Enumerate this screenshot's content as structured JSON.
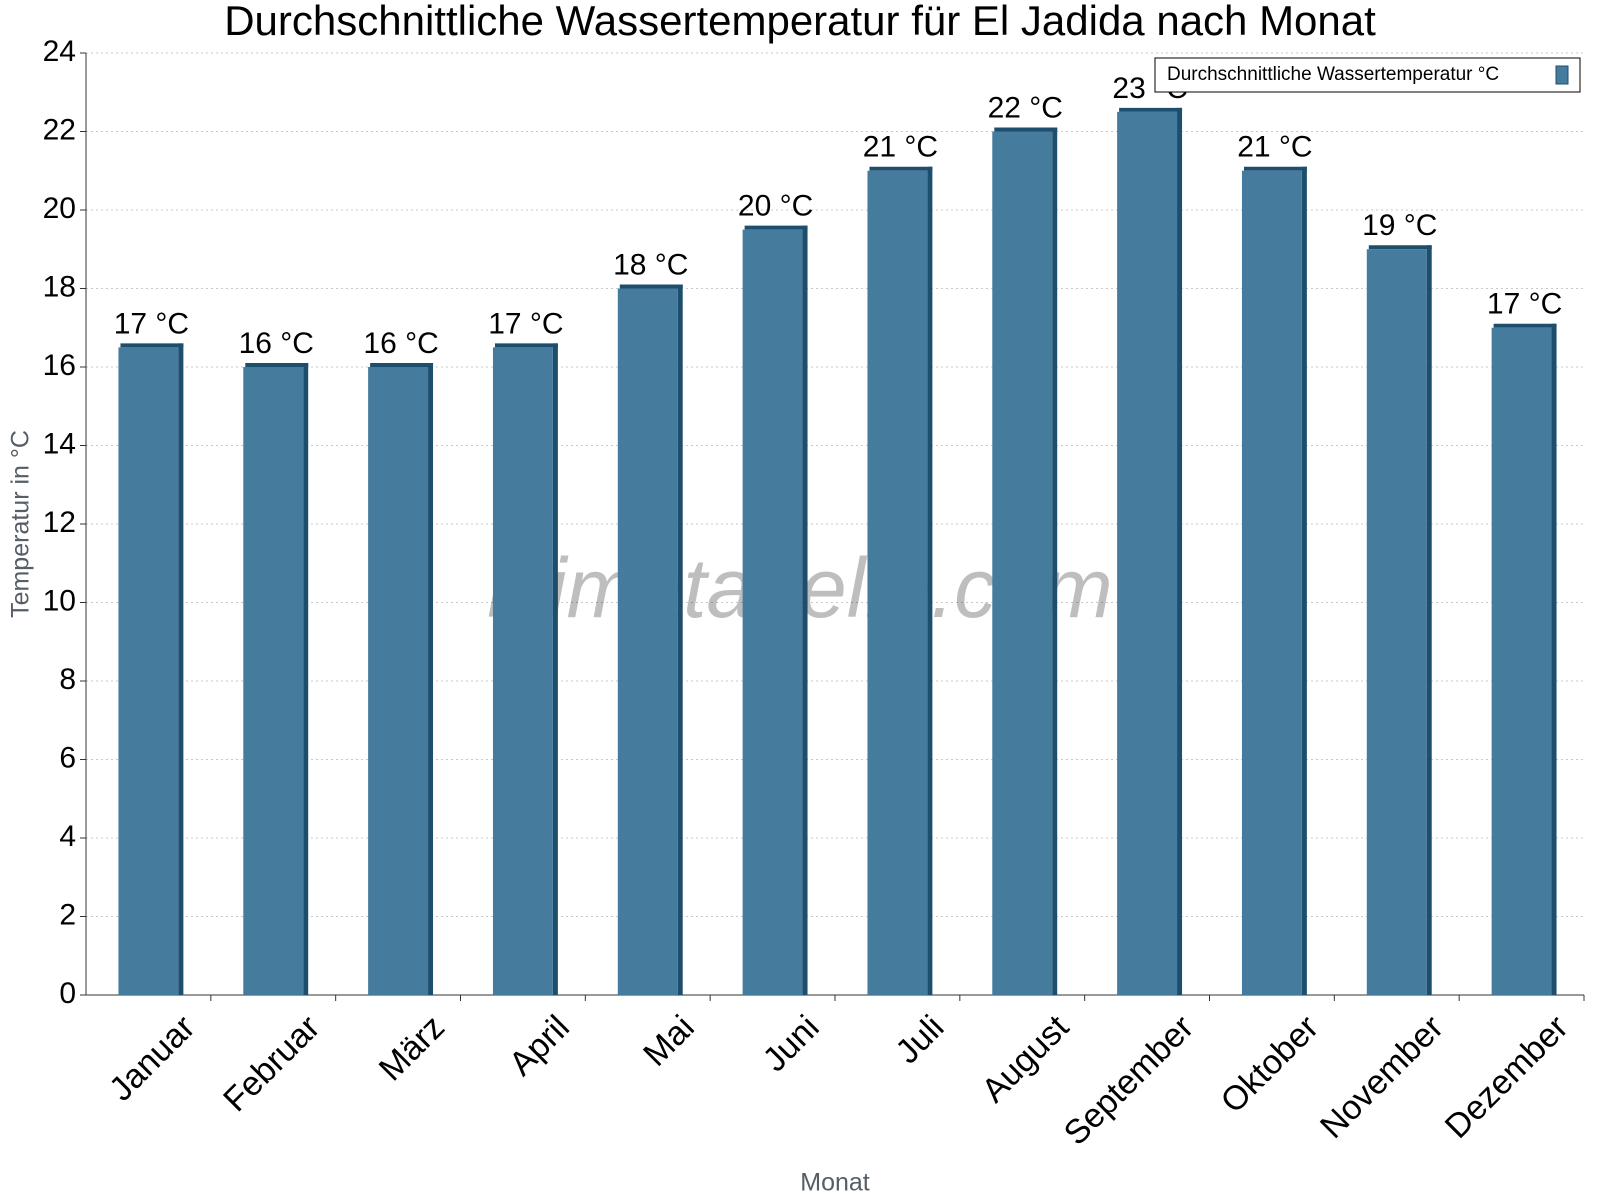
{
  "chart_data": {
    "type": "bar",
    "title": "Durchschnittliche Wassertemperatur für El Jadida nach Monat",
    "x_label": "Monat",
    "y_label": "Temperatur in °C",
    "watermark": "klimatabelle.com",
    "categories": [
      "Januar",
      "Februar",
      "März",
      "April",
      "Mai",
      "Juni",
      "Juli",
      "August",
      "September",
      "Oktober",
      "November",
      "Dezember"
    ],
    "series": [
      {
        "name": "Durchschnittliche Wassertemperatur °C",
        "color": "#457b9d",
        "values": [
          16.5,
          16.0,
          16.0,
          16.5,
          18.0,
          19.5,
          21.0,
          22.0,
          22.5,
          21.0,
          19.0,
          17.0
        ],
        "value_labels": [
          "17 °C",
          "16 °C",
          "16 °C",
          "17 °C",
          "18 °C",
          "20 °C",
          "21 °C",
          "22 °C",
          "23 °C",
          "21 °C",
          "19 °C",
          "17 °C"
        ]
      }
    ],
    "ylim": [
      0,
      24
    ],
    "yticks": [
      0,
      2,
      4,
      6,
      8,
      10,
      12,
      14,
      16,
      18,
      20,
      22,
      24
    ],
    "grid": true,
    "legend": "top-right"
  }
}
